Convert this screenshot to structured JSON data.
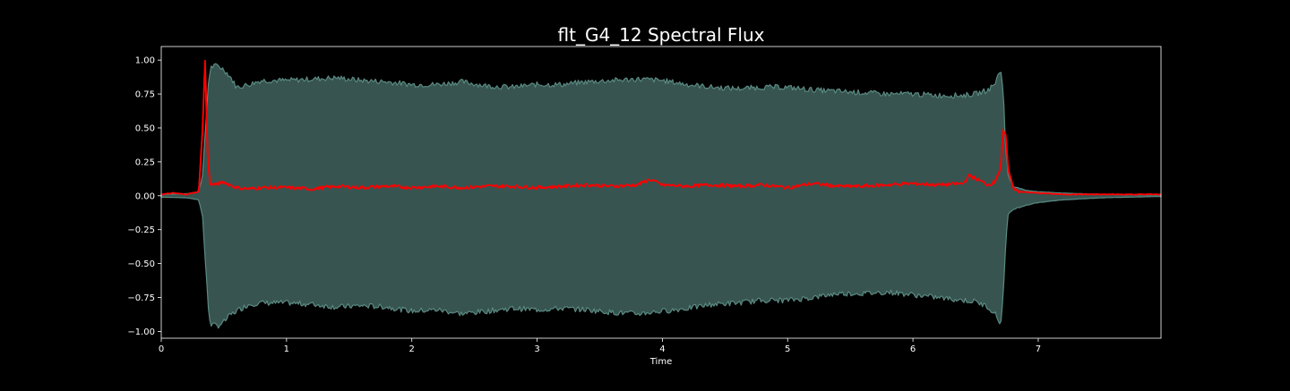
{
  "chart_data": {
    "type": "area",
    "title": "flt_G4_12 Spectral Flux",
    "xlabel": "Time",
    "ylabel": "",
    "xlim": [
      0,
      7.98
    ],
    "ylim": [
      -1.05,
      1.1
    ],
    "x_ticks": [
      0,
      1,
      2,
      3,
      4,
      5,
      6,
      7
    ],
    "x_tick_labels": [
      "0",
      "1",
      "2",
      "3",
      "4",
      "5",
      "6",
      "7"
    ],
    "y_ticks": [
      1.0,
      0.75,
      0.5,
      0.25,
      0.0,
      -0.25,
      -0.5,
      -0.75,
      -1.0
    ],
    "y_tick_labels": [
      "1.00",
      "0.75",
      "0.50",
      "0.25",
      "0.00",
      "−0.25",
      "−0.50",
      "−0.75",
      "−1.00"
    ],
    "grid": false,
    "colors": {
      "background": "#000000",
      "waveform_fill": "#375450",
      "waveform_edge": "#5a8a82",
      "flux_line": "#ff0000",
      "axes": "#ffffff"
    },
    "series": [
      {
        "kind": "waveform-envelope",
        "x": [
          0,
          0.2,
          0.3,
          0.33,
          0.36,
          0.38,
          0.4,
          0.45,
          0.5,
          0.55,
          0.6,
          0.7,
          0.8,
          1.0,
          1.2,
          1.4,
          1.6,
          1.8,
          2.0,
          2.2,
          2.4,
          2.6,
          2.8,
          3.0,
          3.2,
          3.4,
          3.6,
          3.8,
          4.0,
          4.2,
          4.4,
          4.6,
          4.8,
          5.0,
          5.2,
          5.4,
          5.6,
          5.8,
          6.0,
          6.2,
          6.4,
          6.5,
          6.6,
          6.65,
          6.7,
          6.72,
          6.74,
          6.76,
          6.8,
          6.9,
          7.0,
          7.2,
          7.5,
          7.98
        ],
        "upper": [
          0.01,
          0.015,
          0.03,
          0.15,
          0.6,
          0.88,
          0.95,
          0.96,
          0.93,
          0.88,
          0.8,
          0.82,
          0.85,
          0.85,
          0.86,
          0.87,
          0.85,
          0.84,
          0.82,
          0.82,
          0.84,
          0.81,
          0.8,
          0.82,
          0.82,
          0.84,
          0.85,
          0.86,
          0.85,
          0.82,
          0.8,
          0.79,
          0.8,
          0.8,
          0.78,
          0.77,
          0.76,
          0.75,
          0.75,
          0.74,
          0.74,
          0.75,
          0.78,
          0.82,
          0.93,
          0.8,
          0.35,
          0.15,
          0.07,
          0.04,
          0.03,
          0.02,
          0.01,
          0.005
        ],
        "lower": [
          -0.01,
          -0.015,
          -0.03,
          -0.15,
          -0.6,
          -0.88,
          -0.95,
          -0.96,
          -0.93,
          -0.88,
          -0.85,
          -0.8,
          -0.79,
          -0.79,
          -0.8,
          -0.82,
          -0.81,
          -0.82,
          -0.85,
          -0.84,
          -0.87,
          -0.85,
          -0.83,
          -0.84,
          -0.83,
          -0.84,
          -0.86,
          -0.87,
          -0.85,
          -0.83,
          -0.8,
          -0.79,
          -0.77,
          -0.77,
          -0.75,
          -0.72,
          -0.72,
          -0.71,
          -0.73,
          -0.75,
          -0.77,
          -0.78,
          -0.82,
          -0.86,
          -0.95,
          -0.75,
          -0.35,
          -0.14,
          -0.1,
          -0.07,
          -0.05,
          -0.03,
          -0.015,
          -0.005
        ]
      },
      {
        "kind": "spectral-flux",
        "x": [
          0,
          0.1,
          0.2,
          0.3,
          0.33,
          0.35,
          0.37,
          0.39,
          0.42,
          0.5,
          0.6,
          0.7,
          0.8,
          1.0,
          1.2,
          1.4,
          1.6,
          1.8,
          2.0,
          2.2,
          2.4,
          2.6,
          2.8,
          3.0,
          3.2,
          3.4,
          3.6,
          3.8,
          3.9,
          4.0,
          4.2,
          4.4,
          4.6,
          4.8,
          5.0,
          5.2,
          5.4,
          5.6,
          5.8,
          6.0,
          6.2,
          6.4,
          6.45,
          6.6,
          6.65,
          6.7,
          6.72,
          6.74,
          6.76,
          6.8,
          6.85,
          7.0,
          7.2,
          7.5,
          7.98
        ],
        "y": [
          0.01,
          0.02,
          0.01,
          0.03,
          0.5,
          1.0,
          0.3,
          0.09,
          0.08,
          0.1,
          0.06,
          0.05,
          0.06,
          0.06,
          0.05,
          0.07,
          0.06,
          0.07,
          0.06,
          0.07,
          0.06,
          0.07,
          0.07,
          0.06,
          0.07,
          0.08,
          0.07,
          0.08,
          0.12,
          0.08,
          0.07,
          0.08,
          0.07,
          0.08,
          0.06,
          0.09,
          0.07,
          0.07,
          0.08,
          0.09,
          0.08,
          0.09,
          0.15,
          0.08,
          0.1,
          0.2,
          0.48,
          0.45,
          0.2,
          0.06,
          0.03,
          0.02,
          0.01,
          0.01,
          0.01
        ]
      }
    ]
  }
}
